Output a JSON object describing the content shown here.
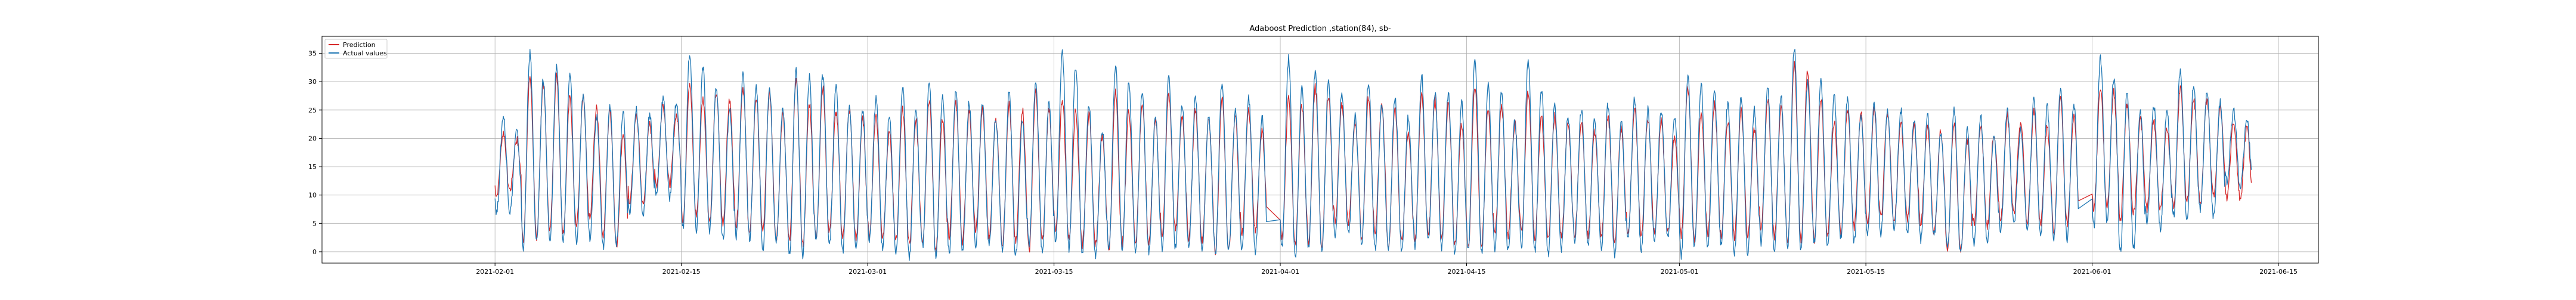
{
  "chart_data": {
    "type": "line",
    "title": "Adaboost Prediction ,station(84), sb-",
    "xlabel": "",
    "ylabel": "",
    "x_range": [
      "2021-01-19",
      "2021-06-18"
    ],
    "x_ticks": [
      "2021-02-01",
      "2021-02-15",
      "2021-03-01",
      "2021-03-15",
      "2021-04-01",
      "2021-04-15",
      "2021-05-01",
      "2021-05-15",
      "2021-06-01",
      "2021-06-15"
    ],
    "ylim": [
      -2,
      38
    ],
    "y_ticks": [
      0,
      5,
      10,
      15,
      20,
      25,
      30,
      35
    ],
    "grid": true,
    "legend": "top-left",
    "series": [
      {
        "name": "Prediction",
        "color": "#d62728",
        "peaks": [
          [
            "2021-02-01",
            21
          ],
          [
            "2021-02-03",
            31
          ],
          [
            "2021-02-05",
            31
          ],
          [
            "2021-02-07",
            27
          ],
          [
            "2021-02-09",
            25
          ],
          [
            "2021-02-11",
            24
          ],
          [
            "2021-02-13",
            26
          ],
          [
            "2021-02-15",
            30
          ],
          [
            "2021-02-17",
            28
          ],
          [
            "2021-02-19",
            29
          ],
          [
            "2021-02-21",
            28
          ],
          [
            "2021-02-23",
            30
          ],
          [
            "2021-02-25",
            29
          ],
          [
            "2021-02-27",
            25
          ],
          [
            "2021-03-01",
            24
          ],
          [
            "2021-03-03",
            25
          ],
          [
            "2021-03-05",
            27
          ],
          [
            "2021-03-07",
            26
          ],
          [
            "2021-03-09",
            25
          ],
          [
            "2021-03-11",
            26
          ],
          [
            "2021-03-13",
            28
          ],
          [
            "2021-03-15",
            27
          ],
          [
            "2021-03-17",
            24
          ],
          [
            "2021-03-19",
            28
          ],
          [
            "2021-03-21",
            26
          ],
          [
            "2021-03-23",
            28
          ],
          [
            "2021-03-25",
            25
          ],
          [
            "2021-03-27",
            27
          ],
          [
            "2021-03-29",
            25
          ],
          [
            "2021-04-01",
            27
          ],
          [
            "2021-04-03",
            29
          ],
          [
            "2021-04-05",
            26
          ],
          [
            "2021-04-07",
            27
          ],
          [
            "2021-04-09",
            25
          ],
          [
            "2021-04-11",
            28
          ],
          [
            "2021-04-13",
            26
          ],
          [
            "2021-04-15",
            29
          ],
          [
            "2021-04-17",
            26
          ],
          [
            "2021-04-19",
            28
          ],
          [
            "2021-04-21",
            24
          ],
          [
            "2021-04-23",
            23
          ],
          [
            "2021-04-25",
            24
          ],
          [
            "2021-04-27",
            25
          ],
          [
            "2021-04-29",
            23
          ],
          [
            "2021-05-01",
            29
          ],
          [
            "2021-05-03",
            26
          ],
          [
            "2021-05-05",
            25
          ],
          [
            "2021-05-07",
            27
          ],
          [
            "2021-05-09",
            33
          ],
          [
            "2021-05-11",
            27
          ],
          [
            "2021-05-13",
            25
          ],
          [
            "2021-05-15",
            25
          ],
          [
            "2021-05-17",
            23
          ],
          [
            "2021-05-19",
            22
          ],
          [
            "2021-05-21",
            23
          ],
          [
            "2021-05-23",
            22
          ],
          [
            "2021-05-25",
            24
          ],
          [
            "2021-05-27",
            25
          ],
          [
            "2021-05-29",
            27
          ],
          [
            "2021-06-01",
            29
          ],
          [
            "2021-06-03",
            26
          ],
          [
            "2021-06-05",
            23
          ],
          [
            "2021-06-07",
            29
          ],
          [
            "2021-06-09",
            27
          ],
          [
            "2021-06-11",
            23
          ]
        ],
        "troughs": [
          [
            "2021-02-01",
            10
          ],
          [
            "2021-02-03",
            2
          ],
          [
            "2021-02-05",
            3
          ],
          [
            "2021-02-07",
            5
          ],
          [
            "2021-02-09",
            2
          ],
          [
            "2021-02-11",
            8
          ],
          [
            "2021-02-13",
            12
          ],
          [
            "2021-02-15",
            6
          ],
          [
            "2021-02-17",
            5
          ],
          [
            "2021-02-19",
            4
          ],
          [
            "2021-02-21",
            3
          ],
          [
            "2021-02-23",
            2
          ],
          [
            "2021-02-25",
            3
          ],
          [
            "2021-02-27",
            2
          ],
          [
            "2021-03-01",
            3
          ],
          [
            "2021-03-03",
            2
          ],
          [
            "2021-03-05",
            1
          ],
          [
            "2021-03-07",
            2
          ],
          [
            "2021-03-09",
            3
          ],
          [
            "2021-03-11",
            2
          ],
          [
            "2021-03-13",
            1
          ],
          [
            "2021-03-15",
            3
          ],
          [
            "2021-03-17",
            2
          ],
          [
            "2021-03-19",
            1
          ],
          [
            "2021-03-21",
            2
          ],
          [
            "2021-03-23",
            3
          ],
          [
            "2021-03-25",
            2
          ],
          [
            "2021-03-27",
            1
          ],
          [
            "2021-03-29",
            3
          ],
          [
            "2021-04-01",
            2
          ],
          [
            "2021-04-03",
            1
          ],
          [
            "2021-04-05",
            5
          ],
          [
            "2021-04-07",
            3
          ],
          [
            "2021-04-09",
            1
          ],
          [
            "2021-04-11",
            3
          ],
          [
            "2021-04-13",
            2
          ],
          [
            "2021-04-15",
            1
          ],
          [
            "2021-04-17",
            2
          ],
          [
            "2021-04-19",
            3
          ],
          [
            "2021-04-21",
            2
          ],
          [
            "2021-04-23",
            3
          ],
          [
            "2021-04-25",
            2
          ],
          [
            "2021-04-27",
            3
          ],
          [
            "2021-04-29",
            4
          ],
          [
            "2021-05-01",
            2
          ],
          [
            "2021-05-03",
            3
          ],
          [
            "2021-05-05",
            2
          ],
          [
            "2021-05-07",
            3
          ],
          [
            "2021-05-09",
            2
          ],
          [
            "2021-05-11",
            3
          ],
          [
            "2021-05-13",
            4
          ],
          [
            "2021-05-15",
            5
          ],
          [
            "2021-05-17",
            6
          ],
          [
            "2021-05-19",
            4
          ],
          [
            "2021-05-21",
            1
          ],
          [
            "2021-05-23",
            4
          ],
          [
            "2021-05-25",
            6
          ],
          [
            "2021-05-27",
            5
          ],
          [
            "2021-05-29",
            4
          ],
          [
            "2021-06-01",
            7
          ],
          [
            "2021-06-03",
            6
          ],
          [
            "2021-06-05",
            7
          ],
          [
            "2021-06-07",
            8
          ],
          [
            "2021-06-09",
            9
          ],
          [
            "2021-06-11",
            10
          ]
        ]
      },
      {
        "name": "Actual values",
        "color": "#1f77b4",
        "peaks": [
          [
            "2021-02-01",
            24
          ],
          [
            "2021-02-03",
            35
          ],
          [
            "2021-02-05",
            33
          ],
          [
            "2021-02-07",
            28
          ],
          [
            "2021-02-09",
            26
          ],
          [
            "2021-02-11",
            25
          ],
          [
            "2021-02-13",
            27
          ],
          [
            "2021-02-15",
            35
          ],
          [
            "2021-02-17",
            29
          ],
          [
            "2021-02-19",
            31
          ],
          [
            "2021-02-21",
            29
          ],
          [
            "2021-02-23",
            32
          ],
          [
            "2021-02-25",
            31
          ],
          [
            "2021-02-27",
            26
          ],
          [
            "2021-03-01",
            27
          ],
          [
            "2021-03-03",
            29
          ],
          [
            "2021-03-05",
            30
          ],
          [
            "2021-03-07",
            28
          ],
          [
            "2021-03-09",
            26
          ],
          [
            "2021-03-11",
            28
          ],
          [
            "2021-03-13",
            30
          ],
          [
            "2021-03-15",
            35
          ],
          [
            "2021-03-17",
            26
          ],
          [
            "2021-03-19",
            33
          ],
          [
            "2021-03-21",
            28
          ],
          [
            "2021-03-23",
            31
          ],
          [
            "2021-03-25",
            27
          ],
          [
            "2021-03-27",
            30
          ],
          [
            "2021-03-29",
            27
          ],
          [
            "2021-04-01",
            34
          ],
          [
            "2021-04-03",
            32
          ],
          [
            "2021-04-05",
            28
          ],
          [
            "2021-04-07",
            30
          ],
          [
            "2021-04-09",
            27
          ],
          [
            "2021-04-11",
            31
          ],
          [
            "2021-04-13",
            28
          ],
          [
            "2021-04-15",
            34
          ],
          [
            "2021-04-17",
            28
          ],
          [
            "2021-04-19",
            34
          ],
          [
            "2021-04-21",
            26
          ],
          [
            "2021-04-23",
            25
          ],
          [
            "2021-04-25",
            26
          ],
          [
            "2021-04-27",
            27
          ],
          [
            "2021-04-29",
            25
          ],
          [
            "2021-05-01",
            31
          ],
          [
            "2021-05-03",
            28
          ],
          [
            "2021-05-05",
            27
          ],
          [
            "2021-05-07",
            29
          ],
          [
            "2021-05-09",
            36
          ],
          [
            "2021-05-11",
            30
          ],
          [
            "2021-05-13",
            27
          ],
          [
            "2021-05-15",
            26
          ],
          [
            "2021-05-17",
            25
          ],
          [
            "2021-05-19",
            24
          ],
          [
            "2021-05-21",
            25
          ],
          [
            "2021-05-23",
            24
          ],
          [
            "2021-05-25",
            25
          ],
          [
            "2021-05-27",
            27
          ],
          [
            "2021-05-29",
            29
          ],
          [
            "2021-06-01",
            34
          ],
          [
            "2021-06-03",
            28
          ],
          [
            "2021-06-05",
            26
          ],
          [
            "2021-06-07",
            32
          ],
          [
            "2021-06-09",
            28
          ],
          [
            "2021-06-11",
            25
          ]
        ],
        "troughs": [
          [
            "2021-02-01",
            8
          ],
          [
            "2021-02-03",
            1
          ],
          [
            "2021-02-05",
            1
          ],
          [
            "2021-02-07",
            3
          ],
          [
            "2021-02-09",
            1
          ],
          [
            "2021-02-11",
            6
          ],
          [
            "2021-02-13",
            10
          ],
          [
            "2021-02-15",
            4
          ],
          [
            "2021-02-17",
            3
          ],
          [
            "2021-02-19",
            2
          ],
          [
            "2021-02-21",
            1
          ],
          [
            "2021-02-23",
            0
          ],
          [
            "2021-02-25",
            1
          ],
          [
            "2021-02-27",
            0
          ],
          [
            "2021-03-01",
            1
          ],
          [
            "2021-03-03",
            0
          ],
          [
            "2021-03-05",
            0
          ],
          [
            "2021-03-07",
            0
          ],
          [
            "2021-03-09",
            1
          ],
          [
            "2021-03-11",
            0
          ],
          [
            "2021-03-13",
            0
          ],
          [
            "2021-03-15",
            1
          ],
          [
            "2021-03-17",
            0
          ],
          [
            "2021-03-19",
            0
          ],
          [
            "2021-03-21",
            0
          ],
          [
            "2021-03-23",
            1
          ],
          [
            "2021-03-25",
            0
          ],
          [
            "2021-03-27",
            0
          ],
          [
            "2021-03-29",
            1
          ],
          [
            "2021-04-01",
            0
          ],
          [
            "2021-04-03",
            0
          ],
          [
            "2021-04-05",
            3
          ],
          [
            "2021-04-07",
            1
          ],
          [
            "2021-04-09",
            0
          ],
          [
            "2021-04-11",
            1
          ],
          [
            "2021-04-13",
            0
          ],
          [
            "2021-04-15",
            0
          ],
          [
            "2021-04-17",
            0
          ],
          [
            "2021-04-19",
            1
          ],
          [
            "2021-04-21",
            0
          ],
          [
            "2021-04-23",
            1
          ],
          [
            "2021-04-25",
            0
          ],
          [
            "2021-04-27",
            1
          ],
          [
            "2021-04-29",
            2
          ],
          [
            "2021-05-01",
            0
          ],
          [
            "2021-05-03",
            1
          ],
          [
            "2021-05-05",
            0
          ],
          [
            "2021-05-07",
            1
          ],
          [
            "2021-05-09",
            0
          ],
          [
            "2021-05-11",
            1
          ],
          [
            "2021-05-13",
            2
          ],
          [
            "2021-05-15",
            3
          ],
          [
            "2021-05-17",
            4
          ],
          [
            "2021-05-19",
            2
          ],
          [
            "2021-05-21",
            0
          ],
          [
            "2021-05-23",
            2
          ],
          [
            "2021-05-25",
            4
          ],
          [
            "2021-05-27",
            3
          ],
          [
            "2021-05-29",
            2
          ],
          [
            "2021-06-01",
            5
          ],
          [
            "2021-06-03",
            0
          ],
          [
            "2021-06-05",
            5
          ],
          [
            "2021-06-07",
            6
          ],
          [
            "2021-06-09",
            7
          ],
          [
            "2021-06-11",
            12
          ]
        ]
      }
    ]
  }
}
